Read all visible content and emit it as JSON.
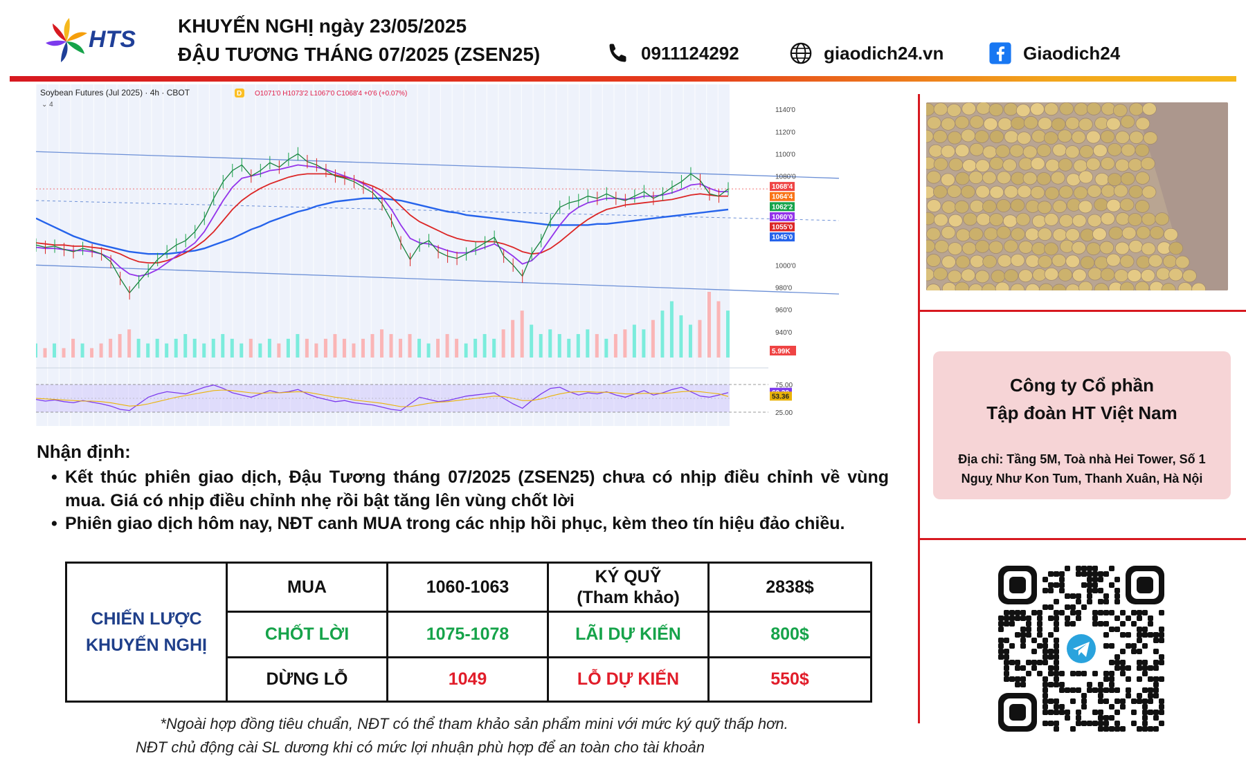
{
  "header": {
    "logo_text": "HTS",
    "title_line1": "KHUYẾN NGHỊ ngày 23/05/2025",
    "title_line2": "ĐẬU TƯƠNG THÁNG 07/2025 (ZSEN25)",
    "phone": "0911124292",
    "website": "giaodich24.vn",
    "facebook": "Giaodich24",
    "icons": [
      "phone-icon",
      "globe-icon",
      "facebook-icon"
    ],
    "bar_colors": [
      "#d71920",
      "#f5b81d"
    ]
  },
  "chart_data": {
    "type": "line",
    "title": "Soybean Futures (Jul 2025) · 4h · CBOT",
    "ohlc": {
      "open": "O1071'0",
      "high": "H1073'2",
      "low": "L1067'0",
      "close": "C1068'4",
      "change": "+0'6 (+0.07%)"
    },
    "interval_badge": "D",
    "collapse_label": "4",
    "ylim": [
      920,
      1150
    ],
    "y_ticks": [
      "1140'0",
      "1120'0",
      "1100'0",
      "1080'0",
      "1000'0",
      "980'0",
      "960'0",
      "940'0"
    ],
    "price_labels": [
      {
        "text": "1068'4",
        "value": 1068.5,
        "color": "#ef4444"
      },
      {
        "text": "1064'4",
        "value": 1064.5,
        "color": "#f97316"
      },
      {
        "text": "1062'2",
        "value": 1062.25,
        "color": "#16a34a"
      },
      {
        "text": "1060'0",
        "value": 1060,
        "color": "#9333ea"
      },
      {
        "text": "1055'0",
        "value": 1055,
        "color": "#dc2626"
      },
      {
        "text": "1045'0",
        "value": 1045,
        "color": "#2563eb"
      }
    ],
    "volume_label": "5.99K",
    "rsi_ticks": [
      "75.00",
      "25.00"
    ],
    "rsi_labels": [
      {
        "text": "60.30",
        "value": 60.3,
        "color": "#7c3aed"
      },
      {
        "text": "53.36",
        "value": 53.36,
        "color": "#eab308"
      }
    ],
    "price": [
      1018,
      1016,
      1017,
      1014,
      1012,
      1015,
      1013,
      1010,
      1003,
      988,
      975,
      985,
      995,
      1005,
      1012,
      1018,
      1022,
      1030,
      1042,
      1060,
      1075,
      1085,
      1090,
      1080,
      1085,
      1092,
      1088,
      1095,
      1100,
      1093,
      1090,
      1085,
      1080,
      1078,
      1075,
      1070,
      1065,
      1055,
      1040,
      1020,
      1005,
      1018,
      1022,
      1012,
      1008,
      1006,
      1010,
      1015,
      1020,
      1025,
      1008,
      1000,
      990,
      1010,
      1022,
      1040,
      1052,
      1056,
      1058,
      1062,
      1060,
      1064,
      1060,
      1058,
      1062,
      1066,
      1060,
      1064,
      1070,
      1075,
      1082,
      1076,
      1064,
      1062,
      1068.5
    ],
    "ma_fast": [
      1016,
      1015,
      1015,
      1014,
      1013,
      1013,
      1012,
      1010,
      1006,
      998,
      992,
      990,
      992,
      996,
      1002,
      1008,
      1014,
      1020,
      1030,
      1044,
      1058,
      1070,
      1078,
      1080,
      1082,
      1085,
      1086,
      1088,
      1090,
      1089,
      1088,
      1086,
      1083,
      1080,
      1077,
      1073,
      1068,
      1061,
      1050,
      1036,
      1024,
      1020,
      1019,
      1016,
      1013,
      1011,
      1011,
      1013,
      1016,
      1019,
      1014,
      1008,
      1001,
      1004,
      1012,
      1024,
      1036,
      1046,
      1052,
      1056,
      1058,
      1060,
      1060,
      1059,
      1060,
      1062,
      1062,
      1063,
      1065,
      1068,
      1072,
      1073,
      1069,
      1066,
      1066
    ],
    "ma_mid": [
      1020,
      1019,
      1018,
      1018,
      1017,
      1017,
      1016,
      1015,
      1013,
      1010,
      1006,
      1003,
      1002,
      1002,
      1004,
      1007,
      1011,
      1016,
      1022,
      1030,
      1040,
      1050,
      1058,
      1064,
      1069,
      1073,
      1076,
      1079,
      1081,
      1082,
      1082,
      1082,
      1081,
      1079,
      1077,
      1074,
      1071,
      1067,
      1061,
      1053,
      1045,
      1039,
      1035,
      1031,
      1027,
      1024,
      1022,
      1021,
      1021,
      1021,
      1019,
      1016,
      1012,
      1010,
      1011,
      1015,
      1021,
      1028,
      1035,
      1041,
      1046,
      1050,
      1052,
      1054,
      1055,
      1056,
      1057,
      1058,
      1059,
      1061,
      1063,
      1064,
      1063,
      1062,
      1062
    ],
    "ma_slow": [
      1042,
      1038,
      1034,
      1030,
      1026,
      1023,
      1020,
      1018,
      1016,
      1014,
      1012,
      1011,
      1010,
      1010,
      1010,
      1011,
      1012,
      1013,
      1015,
      1018,
      1021,
      1024,
      1028,
      1032,
      1035,
      1039,
      1042,
      1045,
      1048,
      1050,
      1053,
      1055,
      1057,
      1058,
      1059,
      1060,
      1060,
      1060,
      1059,
      1058,
      1056,
      1054,
      1052,
      1050,
      1048,
      1047,
      1045,
      1044,
      1043,
      1042,
      1041,
      1040,
      1039,
      1038,
      1037,
      1036,
      1036,
      1036,
      1036,
      1036,
      1037,
      1037,
      1038,
      1039,
      1040,
      1041,
      1042,
      1043,
      1044,
      1045,
      1046,
      1047,
      1048,
      1049,
      1050
    ],
    "rsi": [
      48,
      45,
      47,
      44,
      42,
      46,
      43,
      40,
      36,
      30,
      28,
      40,
      52,
      58,
      62,
      60,
      58,
      64,
      70,
      74,
      68,
      60,
      56,
      52,
      58,
      64,
      60,
      62,
      66,
      58,
      52,
      48,
      44,
      46,
      42,
      40,
      38,
      34,
      30,
      28,
      40,
      52,
      48,
      44,
      46,
      50,
      54,
      56,
      58,
      60,
      50,
      40,
      32,
      46,
      58,
      68,
      70,
      62,
      56,
      60,
      58,
      62,
      56,
      52,
      58,
      64,
      56,
      60,
      66,
      70,
      62,
      54,
      52,
      56,
      60.3
    ],
    "rsi_ma": [
      50,
      49,
      48,
      47,
      46,
      45,
      45,
      44,
      42,
      39,
      36,
      37,
      40,
      44,
      48,
      52,
      55,
      58,
      61,
      64,
      65,
      64,
      62,
      60,
      59,
      60,
      60,
      61,
      62,
      61,
      58,
      55,
      52,
      50,
      47,
      45,
      43,
      41,
      38,
      35,
      35,
      38,
      41,
      43,
      44,
      46,
      48,
      50,
      52,
      54,
      53,
      50,
      46,
      46,
      49,
      54,
      58,
      61,
      62,
      62,
      61,
      61,
      60,
      58,
      58,
      59,
      59,
      59,
      60,
      62,
      63,
      62,
      60,
      58,
      53.36
    ],
    "volume": [
      3,
      2,
      3,
      2,
      4,
      3,
      2,
      3,
      4,
      5,
      6,
      4,
      3,
      4,
      3,
      4,
      5,
      4,
      3,
      4,
      5,
      4,
      3,
      4,
      3,
      4,
      3,
      4,
      5,
      4,
      3,
      4,
      5,
      4,
      3,
      4,
      5,
      6,
      5,
      4,
      5,
      4,
      3,
      4,
      5,
      4,
      3,
      4,
      5,
      4,
      6,
      8,
      10,
      7,
      5,
      6,
      5,
      4,
      5,
      6,
      5,
      4,
      5,
      6,
      7,
      6,
      8,
      10,
      12,
      9,
      7,
      8,
      14,
      12,
      10
    ]
  },
  "side": {
    "photo_label": "soybeans-photo",
    "company_line1": "Công ty Cổ phần",
    "company_line2": "Tập đoàn HT Việt Nam",
    "address_line1": "Địa chỉ: Tầng 5M, Toà nhà Hei Tower, Số 1",
    "address_line2": "Nguỵ Như Kon Tum, Thanh Xuân, Hà Nội",
    "qr_icon": "telegram-icon"
  },
  "analysis": {
    "title": "Nhận định:",
    "bullet1": "Kết thúc phiên giao dịch, Đậu Tương tháng 07/2025 (ZSEN25) chưa có nhịp điều chỉnh về vùng mua. Giá có nhịp điều chỉnh nhẹ rồi bật tăng lên vùng chốt lời",
    "bullet2": "Phiên giao dịch hôm nay, NĐT canh MUA trong các nhịp hồi phục, kèm theo tín hiệu đảo chiều."
  },
  "table": {
    "strategy_line1": "CHIẾN LƯỢC",
    "strategy_line2": "KHUYẾN NGHỊ",
    "buy_label": "MUA",
    "buy_range": "1060-1063",
    "margin_line1": "KÝ QUỸ",
    "margin_line2": "(Tham khảo)",
    "margin_value": "2838$",
    "tp_label": "CHỐT LỜI",
    "tp_range": "1075-1078",
    "profit_label": "LÃI DỰ KIẾN",
    "profit_value": "800$",
    "sl_label": "DỪNG LỖ",
    "sl_value": "1049",
    "loss_label": "LỖ DỰ KIẾN",
    "loss_value": "550$",
    "colors": {
      "green": "#16a34a",
      "red": "#e11d2a",
      "blue": "#1f3f8a"
    }
  },
  "notes": {
    "line1": "*Ngoài hợp đồng tiêu chuẩn, NĐT có thể tham khảo sản phẩm mini với mức ký quỹ thấp hơn.",
    "line2": "NĐT chủ động cài SL dương khi có mức lợi nhuận phù hợp để an toàn cho tài khoản"
  }
}
